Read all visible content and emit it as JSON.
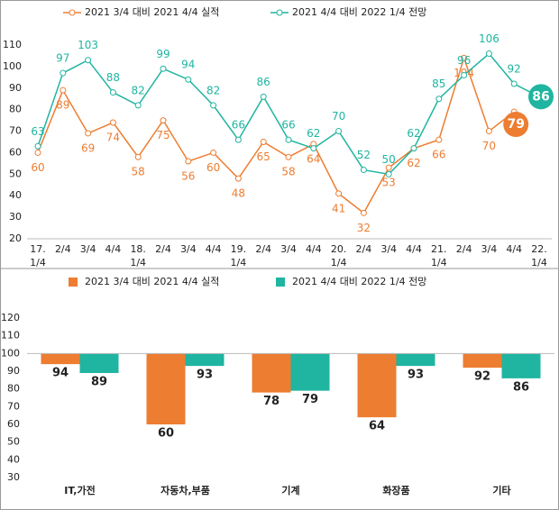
{
  "chart_data": [
    {
      "type": "line",
      "categories": [
        "17.\n1/4",
        "2/4",
        "3/4",
        "4/4",
        "18.\n1/4",
        "2/4",
        "3/4",
        "4/4",
        "19.\n1/4",
        "2/4",
        "3/4",
        "4/4",
        "20.\n1/4",
        "2/4",
        "3/4",
        "4/4",
        "21.\n1/4",
        "2/4",
        "3/4",
        "4/4",
        "22.\n1/4"
      ],
      "series": [
        {
          "name": "2021 3/4 대비 2021 4/4 실적",
          "color": "#ed7d31",
          "values": [
            60,
            89,
            69,
            74,
            58,
            75,
            56,
            60,
            48,
            65,
            58,
            64,
            41,
            32,
            53,
            62,
            66,
            104,
            70,
            79,
            null
          ]
        },
        {
          "name": "2021 4/4 대비 2022 1/4 전망",
          "color": "#1fb5a0",
          "values": [
            63,
            97,
            103,
            88,
            82,
            99,
            94,
            82,
            66,
            86,
            66,
            62,
            70,
            52,
            50,
            62,
            85,
            96,
            106,
            92,
            86
          ]
        }
      ],
      "ylim": [
        20,
        110
      ],
      "yticks": [
        20,
        30,
        40,
        50,
        60,
        70,
        80,
        90,
        100,
        110
      ],
      "grid": false,
      "legend": "top"
    },
    {
      "type": "bar",
      "categories": [
        "IT,가전",
        "자동차,부품",
        "기계",
        "화장품",
        "기타"
      ],
      "series": [
        {
          "name": "2021 3/4 대비 2021 4/4 실적",
          "color": "#ed7d31",
          "values": [
            94,
            60,
            78,
            64,
            92
          ]
        },
        {
          "name": "2021 4/4 대비 2022 1/4 전망",
          "color": "#1fb5a0",
          "values": [
            89,
            93,
            79,
            93,
            86
          ]
        }
      ],
      "ylim": [
        30,
        120
      ],
      "yticks": [
        30,
        40,
        50,
        60,
        70,
        80,
        90,
        100,
        110,
        120
      ],
      "baseline": 100,
      "grid": false,
      "legend": "top"
    }
  ]
}
